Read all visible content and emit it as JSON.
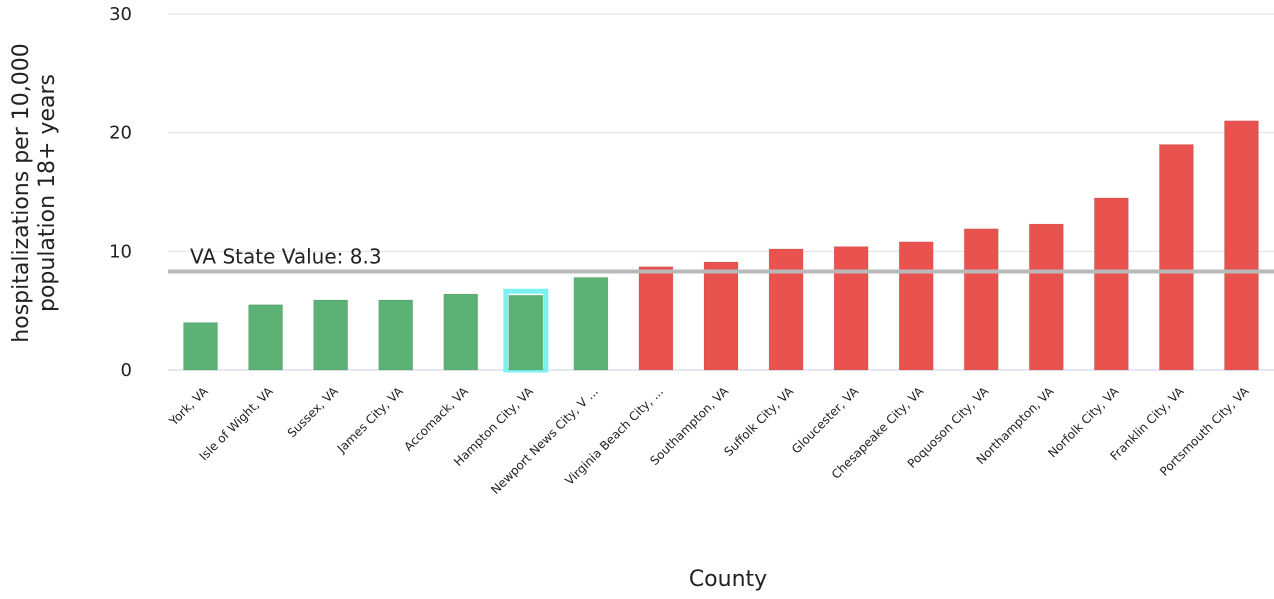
{
  "chart_data": {
    "type": "bar",
    "title": "",
    "xlabel": "County",
    "ylabel_lines": [
      "hospitalizations per 10,000",
      "population 18+ years"
    ],
    "ylim": [
      0,
      30
    ],
    "yticks": [
      0,
      10,
      20,
      30
    ],
    "grid": true,
    "categories": [
      "York, VA",
      "Isle of Wight, VA",
      "Sussex, VA",
      "James City, VA",
      "Accomack, VA",
      "Hampton City, VA",
      "Newport News City, V ...",
      "Virginia Beach City, ...",
      "Southampton, VA",
      "Suffolk City, VA",
      "Gloucester, VA",
      "Chesapeake City, VA",
      "Poquoson City, VA",
      "Northampton, VA",
      "Norfolk City, VA",
      "Franklin City, VA",
      "Portsmouth City, VA"
    ],
    "values": [
      4.0,
      5.5,
      5.9,
      5.9,
      6.4,
      6.3,
      7.8,
      8.7,
      9.1,
      10.2,
      10.4,
      10.8,
      11.9,
      12.3,
      14.5,
      19.0,
      21.0
    ],
    "highlighted": "Hampton City, VA",
    "reference_line": {
      "value": 8.3,
      "label": "VA State Value: 8.3"
    },
    "colors": {
      "below": "#5cb275",
      "above": "#e8534f",
      "highlight_outline": "#7ff0f0",
      "reference": "#b9b9b9",
      "grid": "#dde1e8",
      "baseline": "#c8d0e8"
    }
  }
}
